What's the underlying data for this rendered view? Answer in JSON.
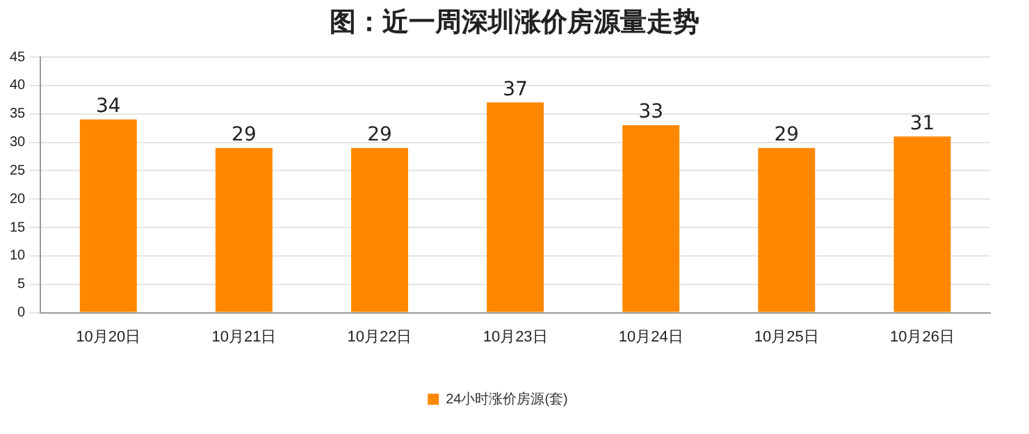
{
  "chart_data": {
    "type": "bar",
    "title": "图：近一周深圳涨价房源量走势",
    "categories": [
      "10月20日",
      "10月21日",
      "10月22日",
      "10月23日",
      "10月24日",
      "10月25日",
      "10月26日"
    ],
    "series": [
      {
        "name": "24小时涨价房源(套)",
        "color": "#ff8800",
        "values": [
          34,
          29,
          29,
          37,
          33,
          29,
          31
        ]
      }
    ],
    "ylim": [
      0,
      45
    ],
    "yticks": [
      0,
      5,
      10,
      15,
      20,
      25,
      30,
      35,
      40,
      45
    ],
    "grid": "y",
    "legend": "bottom",
    "data_labels": true
  }
}
